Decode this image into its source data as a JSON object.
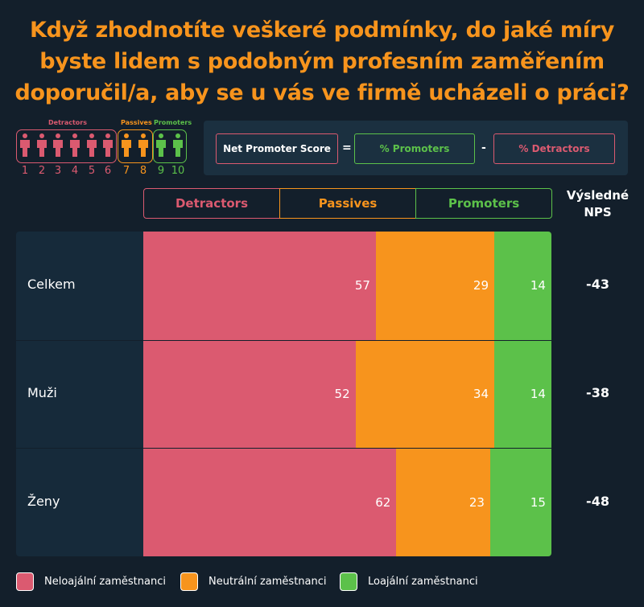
{
  "title": "Když zhodnotíte veškeré podmínky, do jaké míry byste lidem s podobným profesním zaměřením doporučil/a, aby se u vás ve firmě ucházeli o práci?",
  "scale": {
    "detractors": "Detractors",
    "passives": "Passives",
    "promoters": "Promoters",
    "numbers": [
      "1",
      "2",
      "3",
      "4",
      "5",
      "6",
      "7",
      "8",
      "9",
      "10"
    ]
  },
  "formula": {
    "nps": "Net Promoter Score",
    "eq": "=",
    "promoters": "% Promoters",
    "minus": "-",
    "detractors": "% Detractors"
  },
  "colors": {
    "background": "#131f2b",
    "detractors": "#db5a70",
    "passives": "#f7941d",
    "promoters": "#5cc14a"
  },
  "chart_data": {
    "type": "bar",
    "stacked": true,
    "orientation": "horizontal",
    "xlim": [
      0,
      100
    ],
    "categories": [
      "Celkem",
      "Muži",
      "Ženy"
    ],
    "series": [
      {
        "name": "Detractors",
        "values": [
          57,
          52,
          62
        ]
      },
      {
        "name": "Passives",
        "values": [
          29,
          34,
          23
        ]
      },
      {
        "name": "Promoters",
        "values": [
          14,
          14,
          15
        ]
      }
    ],
    "nps_header": "Výsledné NPS",
    "nps": [
      "-43",
      "-38",
      "-48"
    ],
    "legend": [
      "Neloajální zaměstnanci",
      "Neutrální zaměstnanci",
      "Loajální  zaměstnanci"
    ]
  }
}
